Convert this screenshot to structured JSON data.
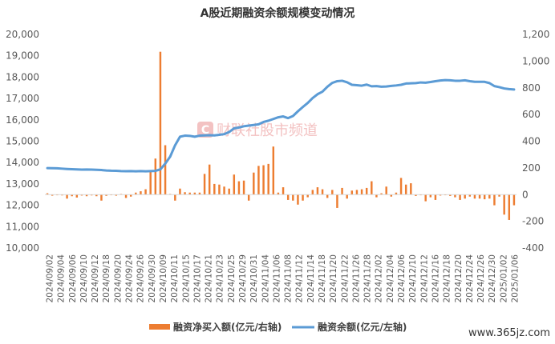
{
  "chart_data": {
    "type": "bar+line",
    "title": "A股近期融资余额规模变动情况",
    "left_axis": {
      "min": 10000,
      "max": 20000,
      "step": 1000,
      "tick_labels": [
        "10,000",
        "11,000",
        "12,000",
        "13,000",
        "14,000",
        "15,000",
        "16,000",
        "17,000",
        "18,000",
        "19,000",
        "20,000"
      ]
    },
    "right_axis": {
      "min": -400,
      "max": 1200,
      "step": 200,
      "tick_labels": [
        "-400",
        "-200",
        "0",
        "200",
        "400",
        "600",
        "800",
        "1,000",
        "1,200"
      ]
    },
    "x_tick_labels": [
      "2024/09/02",
      "2024/09/04",
      "2024/09/06",
      "2024/09/10",
      "2024/09/12",
      "2024/09/18",
      "2024/09/20",
      "2024/09/24",
      "2024/09/26",
      "2024/09/30",
      "2024/10/09",
      "2024/10/11",
      "2024/10/15",
      "2024/10/17",
      "2024/10/21",
      "2024/10/23",
      "2024/10/25",
      "2024/10/29",
      "2024/10/31",
      "2024/11/04",
      "2024/11/06",
      "2024/11/08",
      "2024/11/12",
      "2024/11/14",
      "2024/11/18",
      "2024/11/20",
      "2024/11/22",
      "2024/11/26",
      "2024/11/28",
      "2024/12/02",
      "2024/12/04",
      "2024/12/06",
      "2024/12/10",
      "2024/12/12",
      "2024/12/16",
      "2024/12/18",
      "2024/12/20",
      "2024/12/24",
      "2024/12/26",
      "2024/12/30",
      "2025/01/02",
      "2025/01/06"
    ],
    "series": [
      {
        "name": "融资净买入额(亿元/右轴)",
        "type": "bar",
        "axis": "right",
        "color": "#ED7D31",
        "values": [
          10,
          -8,
          -5,
          -6,
          -30,
          -12,
          -22,
          -7,
          -12,
          -6,
          -12,
          -45,
          -9,
          -4,
          -8,
          5,
          -25,
          -15,
          15,
          25,
          40,
          180,
          270,
          1070,
          370,
          5,
          -45,
          45,
          18,
          15,
          15,
          15,
          155,
          225,
          80,
          75,
          60,
          45,
          150,
          100,
          105,
          -45,
          165,
          215,
          220,
          230,
          360,
          15,
          55,
          -40,
          -45,
          -75,
          -45,
          -20,
          35,
          55,
          40,
          -25,
          35,
          -100,
          50,
          -30,
          30,
          35,
          40,
          50,
          100,
          -20,
          10,
          60,
          -15,
          15,
          125,
          75,
          85,
          -10,
          -5,
          -50,
          -20,
          -40,
          -7,
          -3,
          -10,
          -20,
          -40,
          -30,
          -15,
          -30,
          -30,
          -35,
          -30,
          -80,
          -15,
          -150,
          -190,
          -80
        ]
      },
      {
        "name": "融资余额(亿元/左轴)",
        "type": "line",
        "axis": "left",
        "color": "#5B9BD5",
        "values": [
          13740,
          13735,
          13730,
          13715,
          13700,
          13690,
          13680,
          13670,
          13675,
          13670,
          13660,
          13650,
          13630,
          13620,
          13615,
          13600,
          13595,
          13600,
          13590,
          13600,
          13590,
          13600,
          13610,
          13680,
          13950,
          14280,
          14810,
          15210,
          15260,
          15250,
          15210,
          15260,
          15270,
          15280,
          15270,
          15300,
          15330,
          15430,
          15600,
          15640,
          15700,
          15730,
          15760,
          15790,
          15900,
          15960,
          16040,
          16120,
          16160,
          16080,
          16180,
          16400,
          16600,
          16790,
          17020,
          17200,
          17320,
          17550,
          17730,
          17810,
          17830,
          17760,
          17640,
          17620,
          17600,
          17650,
          17570,
          17580,
          17550,
          17560,
          17590,
          17610,
          17640,
          17700,
          17710,
          17720,
          17750,
          17740,
          17770,
          17810,
          17840,
          17860,
          17850,
          17830,
          17830,
          17850,
          17810,
          17780,
          17780,
          17780,
          17720,
          17580,
          17530,
          17470,
          17440,
          17420
        ]
      }
    ],
    "legend_position": "bottom",
    "grid": false
  },
  "watermark": {
    "logo_letter": "C",
    "text": "财联社股市频道"
  },
  "site_label": "www.365jz.com"
}
